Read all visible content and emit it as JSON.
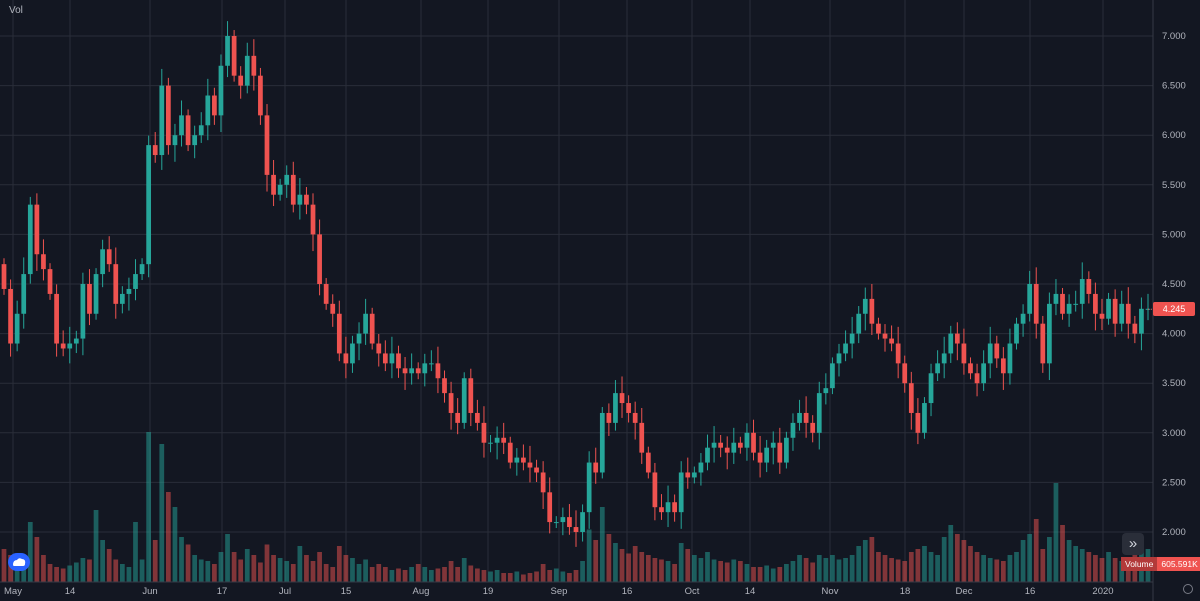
{
  "header": {
    "title": "Vol"
  },
  "badges": {
    "last_price": "4.245",
    "volume_label": "Volume",
    "volume_value": "605.591K"
  },
  "icons": {
    "logo": "tradingview-cloud-icon",
    "scroll": "double-chevron-right-icon",
    "settings": "gear-icon"
  },
  "colors": {
    "background": "#131722",
    "grid": "#2a2e39",
    "up": "#26a69a",
    "down": "#ef5350",
    "text": "#b2b5be"
  },
  "chart_data": {
    "type": "candlestick",
    "title": "Vol",
    "ylim": [
      1.9,
      7.2
    ],
    "y_ticks": [
      "2.000",
      "2.500",
      "3.000",
      "3.500",
      "4.000",
      "4.500",
      "5.000",
      "5.500",
      "6.000",
      "6.500",
      "7.000"
    ],
    "x_ticks": [
      "May",
      "14",
      "Jun",
      "17",
      "Jul",
      "15",
      "Aug",
      "19",
      "Sep",
      "16",
      "Oct",
      "14",
      "Nov",
      "18",
      "Dec",
      "16",
      "2020"
    ],
    "last_price": 4.245,
    "volume_last": "605.591K",
    "closes": [
      4.45,
      3.9,
      4.2,
      4.6,
      5.3,
      4.8,
      4.65,
      4.4,
      3.9,
      3.85,
      3.9,
      3.95,
      4.5,
      4.2,
      4.6,
      4.85,
      4.7,
      4.3,
      4.4,
      4.45,
      4.6,
      4.7,
      5.9,
      5.8,
      6.5,
      5.9,
      6.0,
      6.2,
      5.9,
      6.0,
      6.1,
      6.4,
      6.2,
      6.7,
      7.0,
      6.6,
      6.5,
      6.8,
      6.6,
      6.2,
      5.6,
      5.4,
      5.5,
      5.6,
      5.3,
      5.4,
      5.3,
      5.0,
      4.5,
      4.3,
      4.2,
      3.8,
      3.7,
      3.9,
      4.0,
      4.2,
      3.9,
      3.8,
      3.7,
      3.8,
      3.65,
      3.6,
      3.65,
      3.6,
      3.7,
      3.7,
      3.55,
      3.4,
      3.2,
      3.1,
      3.55,
      3.2,
      3.1,
      2.9,
      2.9,
      2.95,
      2.9,
      2.7,
      2.75,
      2.7,
      2.65,
      2.6,
      2.4,
      2.1,
      2.1,
      2.15,
      2.05,
      2.0,
      2.2,
      2.7,
      2.6,
      3.2,
      3.1,
      3.4,
      3.3,
      3.2,
      3.1,
      2.8,
      2.6,
      2.25,
      2.2,
      2.3,
      2.2,
      2.6,
      2.55,
      2.6,
      2.7,
      2.85,
      2.9,
      2.85,
      2.8,
      2.9,
      2.85,
      3.0,
      2.8,
      2.7,
      2.85,
      2.9,
      2.7,
      2.95,
      3.1,
      3.2,
      3.1,
      3.0,
      3.4,
      3.45,
      3.7,
      3.8,
      3.9,
      4.0,
      4.2,
      4.35,
      4.1,
      4.0,
      3.95,
      3.9,
      3.7,
      3.5,
      3.2,
      3.0,
      3.3,
      3.6,
      3.7,
      3.8,
      4.0,
      3.9,
      3.7,
      3.6,
      3.5,
      3.7,
      3.9,
      3.75,
      3.6,
      3.9,
      4.1,
      4.2,
      4.5,
      4.1,
      3.7,
      4.3,
      4.4,
      4.2,
      4.3,
      4.3,
      4.55,
      4.4,
      4.2,
      4.15,
      4.35,
      4.1,
      4.3,
      4.1,
      4.0,
      4.25,
      4.25
    ],
    "volumes": [
      2.2,
      1.8,
      1.5,
      1.4,
      4.0,
      3.0,
      1.8,
      1.2,
      1.0,
      0.9,
      1.1,
      1.3,
      1.6,
      1.5,
      4.8,
      2.8,
      2.2,
      1.5,
      1.2,
      1.0,
      4.0,
      1.5,
      10.0,
      2.8,
      9.2,
      6.0,
      5.0,
      3.0,
      2.5,
      1.8,
      1.5,
      1.4,
      1.2,
      2.0,
      3.2,
      2.0,
      1.5,
      2.2,
      1.8,
      1.3,
      2.5,
      1.8,
      1.6,
      1.4,
      1.2,
      2.4,
      1.8,
      1.4,
      2.0,
      1.2,
      1.0,
      2.4,
      1.8,
      1.6,
      1.2,
      1.5,
      1.0,
      1.2,
      1.0,
      0.8,
      0.9,
      0.8,
      1.0,
      1.2,
      1.0,
      0.8,
      0.9,
      1.0,
      1.4,
      1.0,
      1.6,
      1.1,
      0.9,
      0.8,
      0.7,
      0.8,
      0.6,
      0.6,
      0.7,
      0.5,
      0.6,
      0.7,
      1.2,
      0.8,
      0.9,
      0.7,
      0.6,
      0.8,
      1.4,
      3.5,
      2.8,
      5.0,
      3.2,
      2.6,
      2.2,
      1.9,
      2.4,
      2.0,
      1.8,
      1.6,
      1.5,
      1.4,
      1.2,
      2.6,
      2.2,
      1.8,
      1.6,
      2.0,
      1.5,
      1.4,
      1.3,
      1.5,
      1.4,
      1.2,
      1.0,
      1.0,
      1.1,
      0.9,
      1.0,
      1.2,
      1.4,
      1.8,
      1.6,
      1.3,
      1.8,
      1.6,
      1.8,
      1.5,
      1.6,
      1.8,
      2.4,
      2.8,
      3.0,
      2.0,
      1.8,
      1.6,
      1.5,
      1.4,
      2.0,
      2.2,
      2.4,
      2.0,
      1.8,
      3.0,
      3.8,
      3.2,
      2.8,
      2.4,
      2.0,
      1.8,
      1.6,
      1.5,
      1.4,
      1.8,
      2.0,
      2.8,
      3.2,
      4.2,
      2.2,
      3.0,
      6.6,
      3.8,
      2.8,
      2.4,
      2.2,
      2.0,
      1.8,
      1.6,
      2.0,
      1.6,
      1.4,
      1.5,
      1.8,
      2.6,
      2.2
    ]
  }
}
